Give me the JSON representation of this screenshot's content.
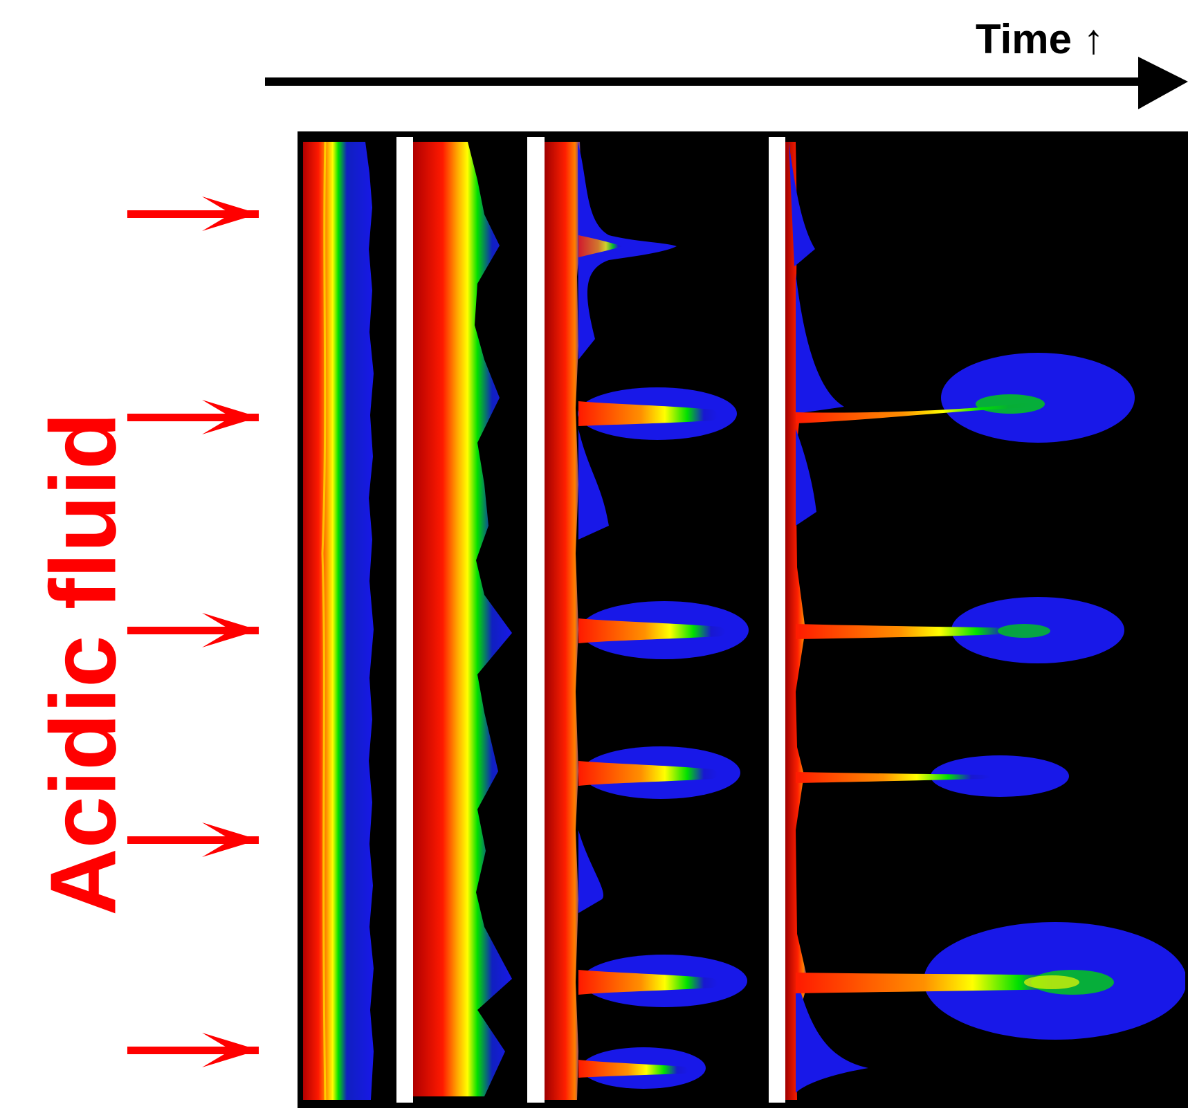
{
  "labels": {
    "time": "Time ↑",
    "fluid": "Acidic fluid"
  },
  "colors": {
    "fluid_label": "#ff0000",
    "arrows": "#ff0000",
    "time_arrow": "#000000",
    "background": "#000000",
    "separator": "#ffffff",
    "colormap": [
      "#8b0000",
      "#ff0000",
      "#ff8c00",
      "#ffff00",
      "#00ff00",
      "#0000ff"
    ]
  },
  "diagram": {
    "type": "reactive-infiltration-instability-time-sequence",
    "panel_count": 4,
    "inflow_arrow_count": 5
  }
}
